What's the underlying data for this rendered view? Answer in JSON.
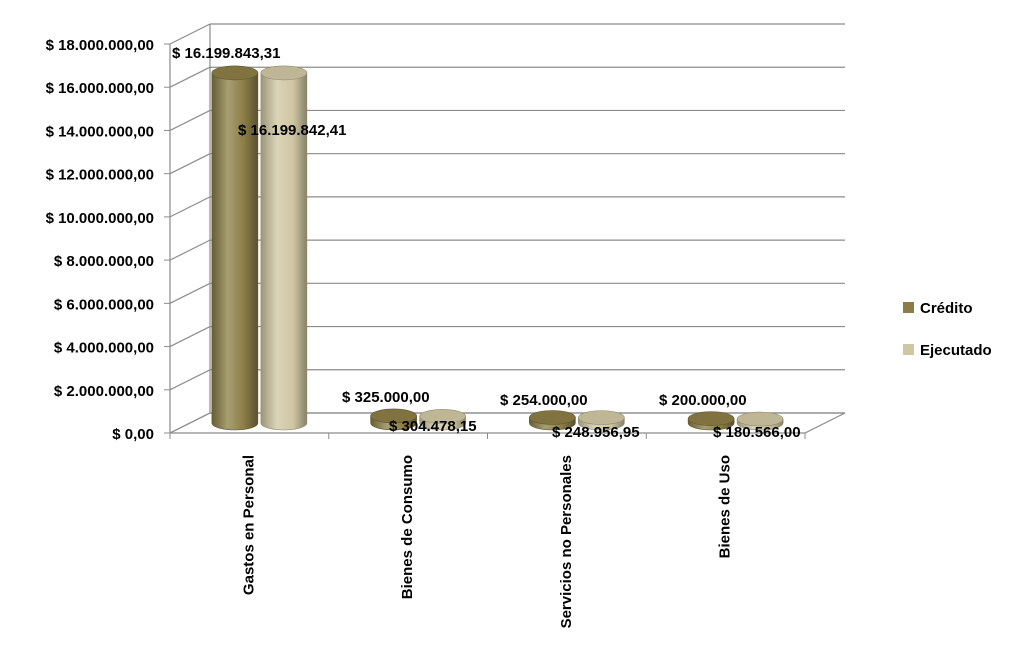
{
  "chart_data": {
    "type": "bar",
    "style": "3d-cylinder",
    "categories": [
      "Gastos en Personal",
      "Bienes  de Consumo",
      "Servicios no Personales",
      "Bienes de Uso"
    ],
    "series": [
      {
        "name": "Crédito",
        "color": "#8B7D45",
        "values": [
          16199843.31,
          325000.0,
          254000.0,
          200000.0
        ],
        "labels": [
          "$ 16.199.843,31",
          "$ 325.000,00",
          "$ 254.000,00",
          "$ 200.000,00"
        ]
      },
      {
        "name": "Ejecutado",
        "color": "#CFC6A2",
        "values": [
          16199842.41,
          304478.15,
          248956.95,
          180566.0
        ],
        "labels": [
          "$ 16.199.842,41",
          "$ 304.478,15",
          "$ 248.956,95",
          "$ 180.566,00"
        ]
      }
    ],
    "ylim": [
      0,
      18000000
    ],
    "ytick_values": [
      0,
      2000000,
      4000000,
      6000000,
      8000000,
      10000000,
      12000000,
      14000000,
      16000000,
      18000000
    ],
    "ytick_labels": [
      "$ 0,00",
      "$ 2.000.000,00",
      "$ 4.000.000,00",
      "$ 6.000.000,00",
      "$ 8.000.000,00",
      "$ 10.000.000,00",
      "$ 12.000.000,00",
      "$ 14.000.000,00",
      "$ 16.000.000,00",
      "$ 18.000.000,00"
    ],
    "grid": true,
    "legend_position": "right"
  }
}
